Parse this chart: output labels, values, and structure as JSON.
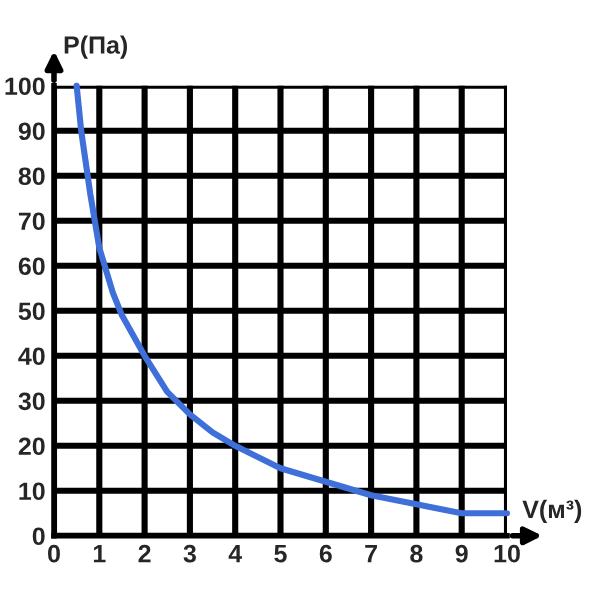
{
  "chart_data": {
    "type": "line",
    "xlabel": "V(м³)",
    "ylabel": "P(Па)",
    "series": [
      {
        "color": "#3f6fd8",
        "x": [
          0.5,
          0.6,
          0.8,
          1,
          1.3,
          1.5,
          2,
          2.5,
          3,
          3.5,
          4,
          5,
          6,
          7,
          8,
          9,
          10
        ],
        "values": [
          100,
          90,
          76,
          64,
          54,
          49,
          40,
          32,
          27,
          23,
          20,
          15,
          12,
          9,
          7,
          5,
          5
        ]
      }
    ],
    "xlim": [
      0,
      10
    ],
    "ylim": [
      0,
      100
    ],
    "xticks": [
      0,
      1,
      2,
      3,
      4,
      5,
      6,
      7,
      8,
      9,
      10
    ],
    "yticks": [
      0,
      10,
      20,
      30,
      40,
      50,
      60,
      70,
      80,
      90,
      100
    ],
    "grid": true,
    "marker": "none",
    "line_style": "solid"
  }
}
